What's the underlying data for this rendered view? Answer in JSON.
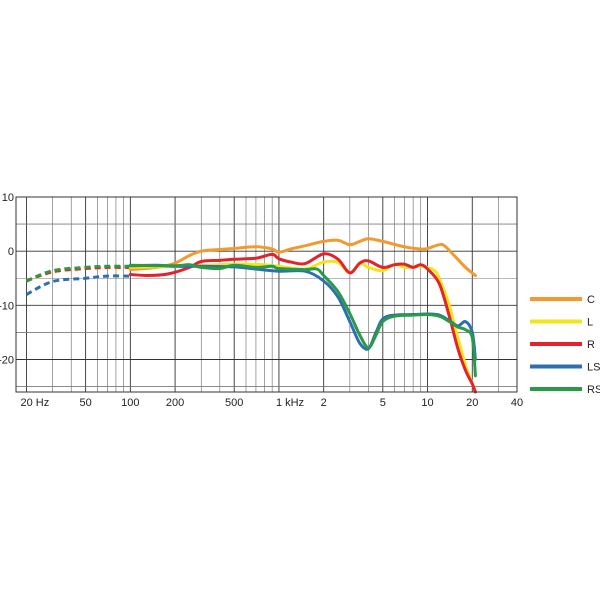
{
  "chart_data": {
    "type": "line",
    "title": "",
    "xlabel": "",
    "ylabel": "",
    "x_scale": "log",
    "xlim": [
      17,
      40000
    ],
    "ylim": [
      -26,
      10
    ],
    "grid": true,
    "legend_position": "right",
    "x_ticks": [
      {
        "value": 20,
        "label": "20  Hz"
      },
      {
        "value": 50,
        "label": "50"
      },
      {
        "value": 100,
        "label": "100"
      },
      {
        "value": 200,
        "label": "200"
      },
      {
        "value": 500,
        "label": "500"
      },
      {
        "value": 1000,
        "label": "1  kHz"
      },
      {
        "value": 2000,
        "label": "2"
      },
      {
        "value": 5000,
        "label": "5"
      },
      {
        "value": 10000,
        "label": "10"
      },
      {
        "value": 20000,
        "label": "20"
      },
      {
        "value": 40000,
        "label": "40"
      }
    ],
    "y_ticks": [
      {
        "value": 10,
        "label": "10"
      },
      {
        "value": 0,
        "label": "0"
      },
      {
        "value": -10,
        "label": "-10"
      },
      {
        "value": -20,
        "label": "-20"
      }
    ],
    "series": [
      {
        "name": "C",
        "color": "#F39A2E",
        "dashed": [
          [
            20,
            -5.5
          ],
          [
            30,
            -3.8
          ],
          [
            50,
            -3.2
          ],
          [
            70,
            -3.0
          ],
          [
            100,
            -3.0
          ]
        ],
        "points": [
          [
            100,
            -3.4
          ],
          [
            150,
            -3.0
          ],
          [
            200,
            -2.2
          ],
          [
            250,
            -0.8
          ],
          [
            300,
            0.0
          ],
          [
            400,
            0.3
          ],
          [
            500,
            0.5
          ],
          [
            700,
            0.8
          ],
          [
            900,
            0.4
          ],
          [
            1000,
            -0.2
          ],
          [
            1200,
            0.4
          ],
          [
            1500,
            1.0
          ],
          [
            2000,
            1.8
          ],
          [
            2500,
            2.0
          ],
          [
            3000,
            1.2
          ],
          [
            3500,
            1.8
          ],
          [
            4000,
            2.3
          ],
          [
            5000,
            1.8
          ],
          [
            7000,
            0.8
          ],
          [
            9000,
            0.4
          ],
          [
            10000,
            0.5
          ],
          [
            12000,
            1.2
          ],
          [
            13000,
            1.0
          ],
          [
            15000,
            -0.7
          ],
          [
            18000,
            -3.0
          ],
          [
            21000,
            -4.5
          ]
        ]
      },
      {
        "name": "L",
        "color": "#F2E51C",
        "dashed": [
          [
            20,
            -5.5
          ],
          [
            30,
            -3.8
          ],
          [
            50,
            -3.2
          ],
          [
            70,
            -3.0
          ],
          [
            100,
            -3.0
          ]
        ],
        "points": [
          [
            100,
            -3.0
          ],
          [
            200,
            -2.8
          ],
          [
            300,
            -2.6
          ],
          [
            500,
            -2.4
          ],
          [
            800,
            -2.5
          ],
          [
            1000,
            -2.8
          ],
          [
            1500,
            -3.3
          ],
          [
            2000,
            -2.0
          ],
          [
            2500,
            -2.1
          ],
          [
            3000,
            -4.0
          ],
          [
            3500,
            -2.3
          ],
          [
            4000,
            -3.0
          ],
          [
            5000,
            -3.6
          ],
          [
            6000,
            -2.4
          ],
          [
            7000,
            -3.0
          ],
          [
            9000,
            -2.8
          ],
          [
            11000,
            -3.5
          ],
          [
            12000,
            -5.0
          ],
          [
            14000,
            -10.0
          ],
          [
            16000,
            -16.0
          ],
          [
            18000,
            -21.0
          ],
          [
            20000,
            -24.5
          ],
          [
            21000,
            -26.0
          ]
        ]
      },
      {
        "name": "R",
        "color": "#E3222B",
        "dashed": [
          [
            20,
            -5.5
          ],
          [
            30,
            -3.8
          ],
          [
            50,
            -3.2
          ],
          [
            70,
            -3.0
          ],
          [
            100,
            -3.0
          ]
        ],
        "points": [
          [
            100,
            -4.3
          ],
          [
            130,
            -4.5
          ],
          [
            180,
            -4.2
          ],
          [
            250,
            -3.0
          ],
          [
            300,
            -1.9
          ],
          [
            400,
            -1.7
          ],
          [
            500,
            -1.5
          ],
          [
            700,
            -1.3
          ],
          [
            900,
            -0.6
          ],
          [
            1000,
            -1.4
          ],
          [
            1200,
            -2.0
          ],
          [
            1500,
            -2.3
          ],
          [
            2000,
            -0.5
          ],
          [
            2500,
            -1.5
          ],
          [
            3000,
            -4.0
          ],
          [
            3500,
            -2.2
          ],
          [
            4000,
            -1.8
          ],
          [
            5000,
            -3.0
          ],
          [
            6000,
            -2.5
          ],
          [
            7000,
            -2.4
          ],
          [
            8000,
            -3.0
          ],
          [
            9000,
            -2.5
          ],
          [
            10000,
            -3.3
          ],
          [
            12000,
            -6.0
          ],
          [
            14000,
            -12.0
          ],
          [
            16000,
            -18.0
          ],
          [
            18000,
            -22.0
          ],
          [
            20000,
            -24.5
          ],
          [
            21000,
            -26.0
          ]
        ]
      },
      {
        "name": "LS",
        "color": "#2E6FAF",
        "dashed": [
          [
            20,
            -8.0
          ],
          [
            30,
            -5.6
          ],
          [
            50,
            -5.0
          ],
          [
            70,
            -4.6
          ],
          [
            100,
            -4.6
          ]
        ],
        "points": [
          [
            100,
            -2.7
          ],
          [
            150,
            -2.6
          ],
          [
            200,
            -2.8
          ],
          [
            300,
            -2.8
          ],
          [
            500,
            -2.9
          ],
          [
            700,
            -3.3
          ],
          [
            1000,
            -3.7
          ],
          [
            1500,
            -3.7
          ],
          [
            2000,
            -5.5
          ],
          [
            2500,
            -8.5
          ],
          [
            3000,
            -13.0
          ],
          [
            3500,
            -17.0
          ],
          [
            4000,
            -18.0
          ],
          [
            4500,
            -15.0
          ],
          [
            5000,
            -12.5
          ],
          [
            6000,
            -11.8
          ],
          [
            8000,
            -11.7
          ],
          [
            10000,
            -11.6
          ],
          [
            12000,
            -11.8
          ],
          [
            14000,
            -12.8
          ],
          [
            16000,
            -13.8
          ],
          [
            18000,
            -13.0
          ],
          [
            20000,
            -15.0
          ],
          [
            21000,
            -20.0
          ]
        ]
      },
      {
        "name": "RS",
        "color": "#2A9A48",
        "dashed": [
          [
            20,
            -5.5
          ],
          [
            30,
            -3.6
          ],
          [
            50,
            -3.0
          ],
          [
            70,
            -2.8
          ],
          [
            100,
            -2.8
          ]
        ],
        "points": [
          [
            100,
            -2.6
          ],
          [
            200,
            -2.7
          ],
          [
            250,
            -2.5
          ],
          [
            300,
            -3.0
          ],
          [
            400,
            -3.2
          ],
          [
            500,
            -2.6
          ],
          [
            700,
            -3.0
          ],
          [
            900,
            -2.8
          ],
          [
            1000,
            -3.2
          ],
          [
            1500,
            -3.4
          ],
          [
            1800,
            -3.3
          ],
          [
            2000,
            -4.5
          ],
          [
            2500,
            -7.5
          ],
          [
            3000,
            -11.5
          ],
          [
            3500,
            -15.5
          ],
          [
            4000,
            -17.8
          ],
          [
            4500,
            -15.5
          ],
          [
            5000,
            -13.0
          ],
          [
            6000,
            -12.0
          ],
          [
            8000,
            -11.8
          ],
          [
            10000,
            -11.7
          ],
          [
            12000,
            -12.0
          ],
          [
            14000,
            -13.0
          ],
          [
            16000,
            -14.0
          ],
          [
            18000,
            -14.5
          ],
          [
            20000,
            -16.0
          ],
          [
            21000,
            -23.0
          ]
        ]
      }
    ]
  }
}
